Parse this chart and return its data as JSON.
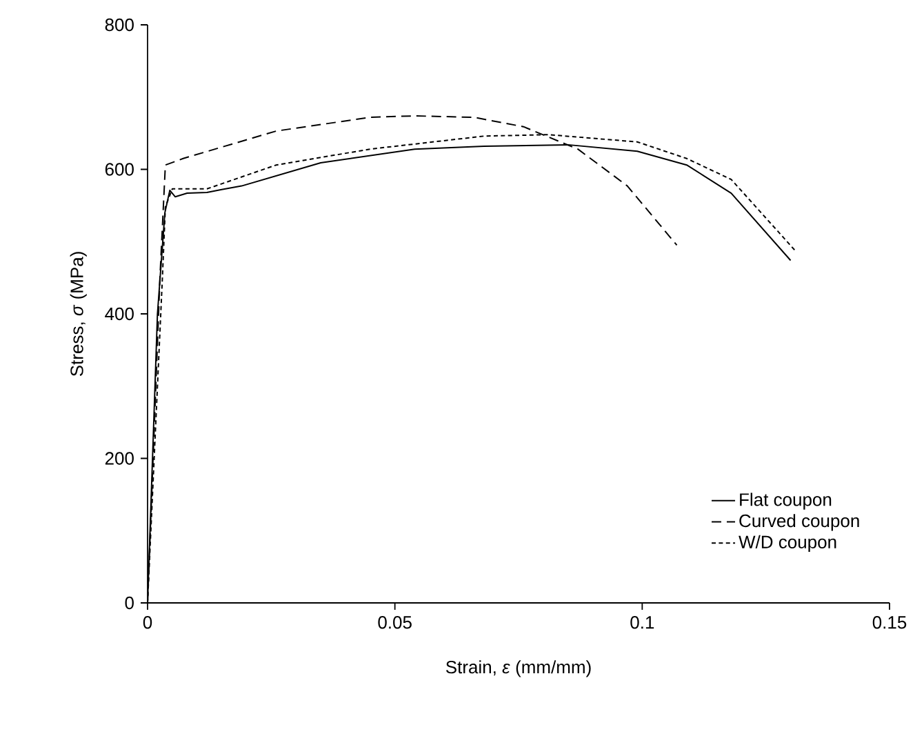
{
  "chart_data": {
    "type": "line",
    "xlabel": "Strain, *ε* (mm/mm)",
    "ylabel": "Stress, *σ* (MPa)",
    "xlim": [
      0,
      0.15
    ],
    "xticks": [
      0,
      0.05,
      0.1,
      0.15
    ],
    "ylim": [
      0,
      800
    ],
    "yticks": [
      0,
      200,
      400,
      600,
      800
    ],
    "grid": false,
    "legend": "bottom right",
    "marker": "none",
    "series": [
      {
        "name": "Flat coupon",
        "color": "#000000",
        "line_style": "solid",
        "x": [
          0,
          0.002,
          0.0035,
          0.0045,
          0.0056,
          0.008,
          0.012,
          0.015,
          0.019,
          0.035,
          0.054,
          0.068,
          0.085,
          0.099,
          0.109,
          0.118,
          0.13
        ],
        "values": [
          0,
          400,
          540,
          571,
          562,
          567,
          568,
          572,
          577,
          609,
          628,
          632,
          634,
          625,
          606,
          567,
          474
        ]
      },
      {
        "name": "Curved coupon",
        "color": "#000000",
        "line_style": "dashed",
        "x": [
          0,
          0.0025,
          0.0036,
          0.0072,
          0.026,
          0.045,
          0.054,
          0.066,
          0.076,
          0.087,
          0.097,
          0.107
        ],
        "values": [
          0,
          450,
          606,
          615,
          653,
          672,
          674,
          672,
          659,
          628,
          577,
          495
        ]
      },
      {
        "name": "W/D coupon",
        "color": "#000000",
        "line_style": "dotted",
        "x": [
          0,
          0.003,
          0.0036,
          0.005,
          0.012,
          0.026,
          0.045,
          0.068,
          0.081,
          0.099,
          0.109,
          0.118,
          0.131
        ],
        "values": [
          0,
          450,
          548,
          573,
          573,
          606,
          628,
          646,
          648,
          638,
          615,
          586,
          487
        ]
      }
    ]
  }
}
